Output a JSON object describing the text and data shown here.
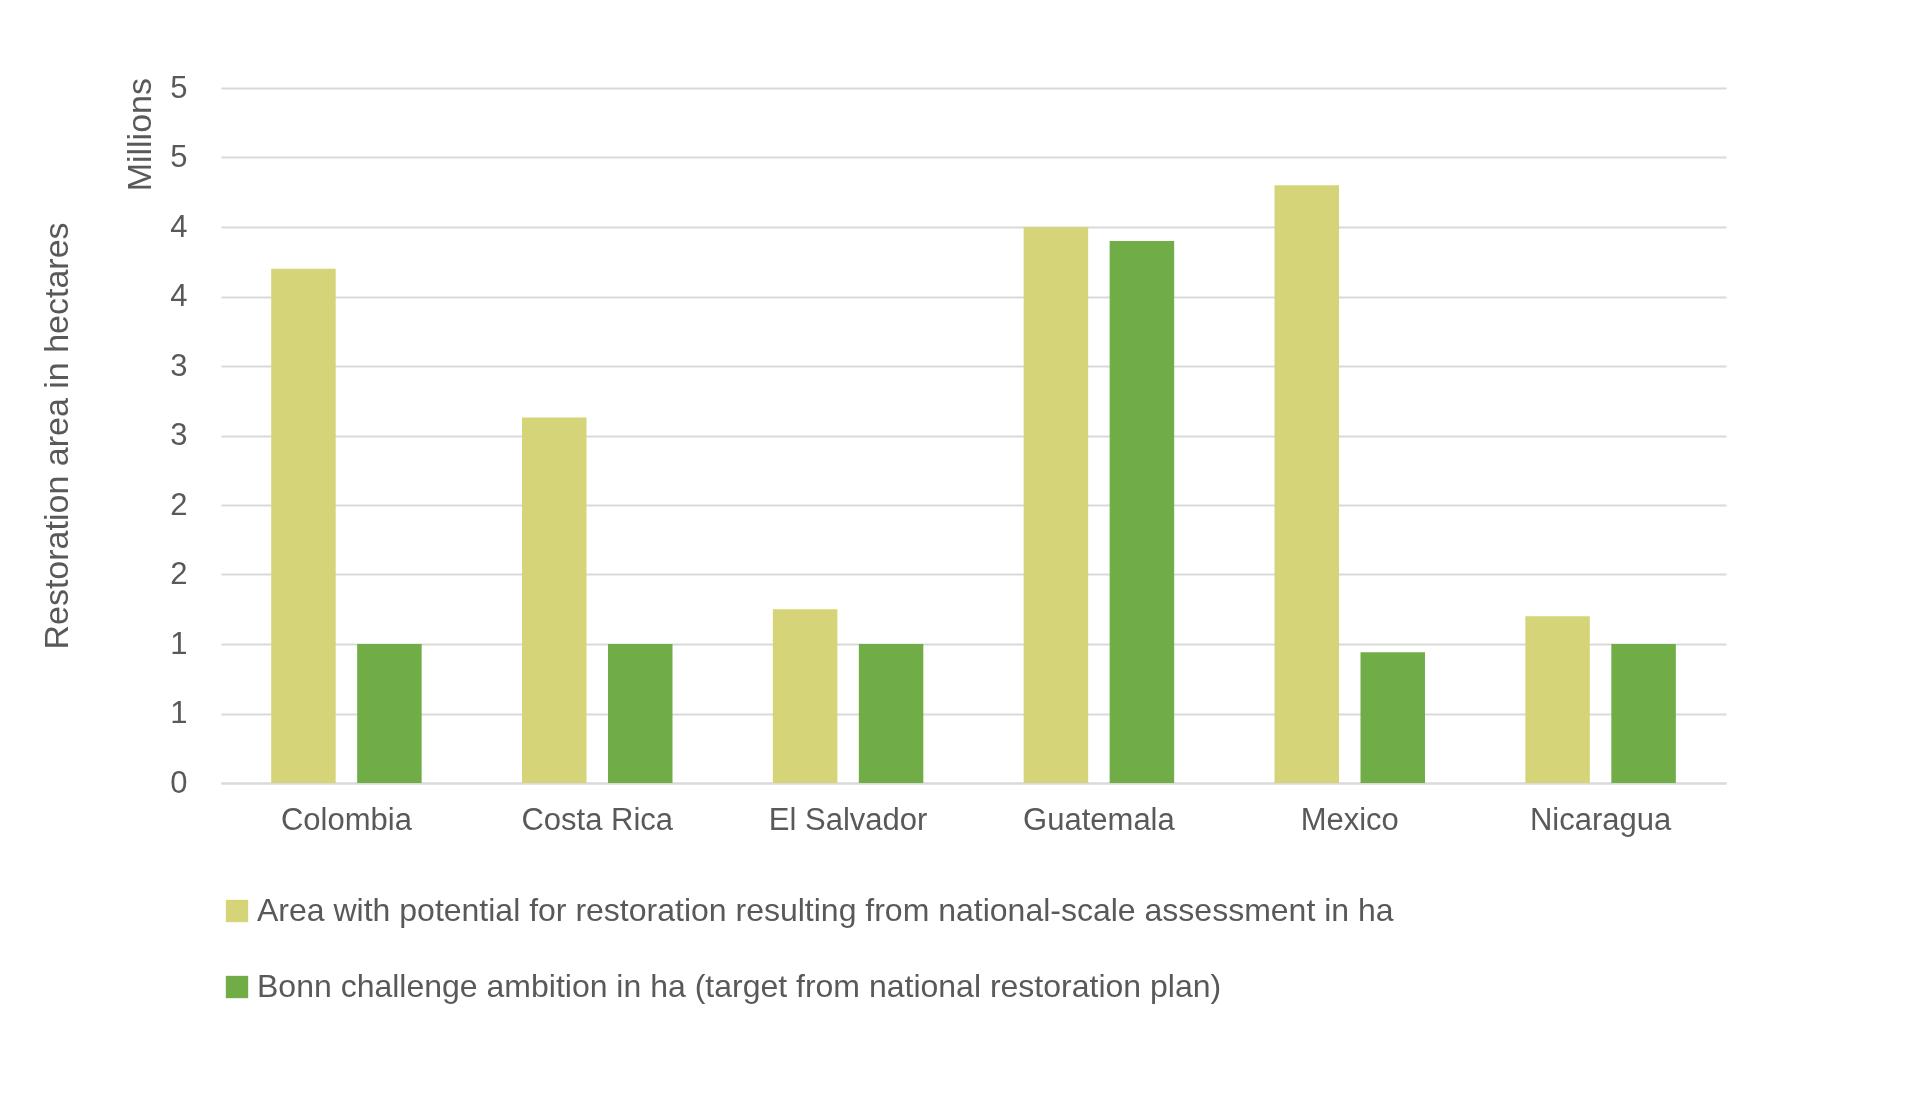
{
  "chart_data": {
    "type": "bar",
    "ylabel": "Restoration area in hectares",
    "annotations": [
      "Millions"
    ],
    "categories": [
      "Colombia",
      "Costa Rica",
      "El Salvador",
      "Guatemala",
      "Mexico",
      "Nicaragua"
    ],
    "series": [
      {
        "name": "Area with potential for restoration resulting from national-scale assessment in ha",
        "color": "#d5d479",
        "values": [
          3.7,
          2.63,
          1.25,
          4.0,
          4.3,
          1.2
        ]
      },
      {
        "name": "Bonn challenge ambition in ha (target from national restoration plan)",
        "color": "#70ad47",
        "values": [
          1.0,
          1.0,
          1.0,
          3.9,
          0.94,
          1.0
        ]
      }
    ],
    "ylim": [
      0,
      5
    ],
    "yticks": [
      0,
      {
        "value": 0.5,
        "label": "1"
      },
      1,
      {
        "value": 1.5,
        "label": "2"
      },
      2,
      {
        "value": 2.5,
        "label": "3"
      },
      3,
      {
        "value": 3.5,
        "label": "4"
      },
      4,
      {
        "value": 4.5,
        "label": "5"
      },
      5
    ],
    "grid": "y",
    "legend": "bottom"
  }
}
